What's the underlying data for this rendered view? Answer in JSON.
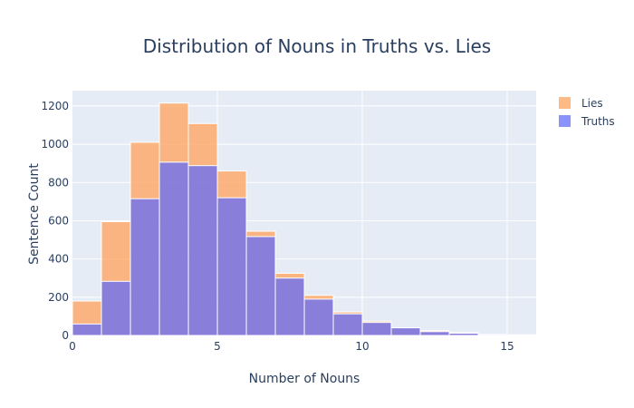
{
  "chart_data": {
    "type": "bar",
    "barmode": "overlay",
    "title": "Distribution of Nouns in Truths vs. Lies",
    "xlabel": "Number of Nouns",
    "ylabel": "Sentence Count",
    "xlim": [
      0,
      16
    ],
    "ylim": [
      0,
      1280
    ],
    "x_ticks": [
      0,
      5,
      10,
      15
    ],
    "y_ticks": [
      0,
      200,
      400,
      600,
      800,
      1000,
      1200
    ],
    "bin_width": 1,
    "bin_starts": [
      0,
      1,
      2,
      3,
      4,
      5,
      6,
      7,
      8,
      9,
      10,
      11,
      12,
      13,
      14,
      15
    ],
    "series": [
      {
        "name": "Lies",
        "color": "#FFA15A",
        "values": [
          180,
          595,
          1010,
          1215,
          1108,
          860,
          545,
          325,
          210,
          123,
          75,
          40,
          25,
          15,
          5,
          3
        ]
      },
      {
        "name": "Truths",
        "color": "#636EFA",
        "values": [
          60,
          283,
          715,
          906,
          888,
          720,
          517,
          300,
          190,
          113,
          68,
          40,
          20,
          12,
          5,
          3
        ]
      }
    ],
    "grid": true,
    "legend_position": "top-right",
    "plot_background": "#E5ECF6"
  }
}
